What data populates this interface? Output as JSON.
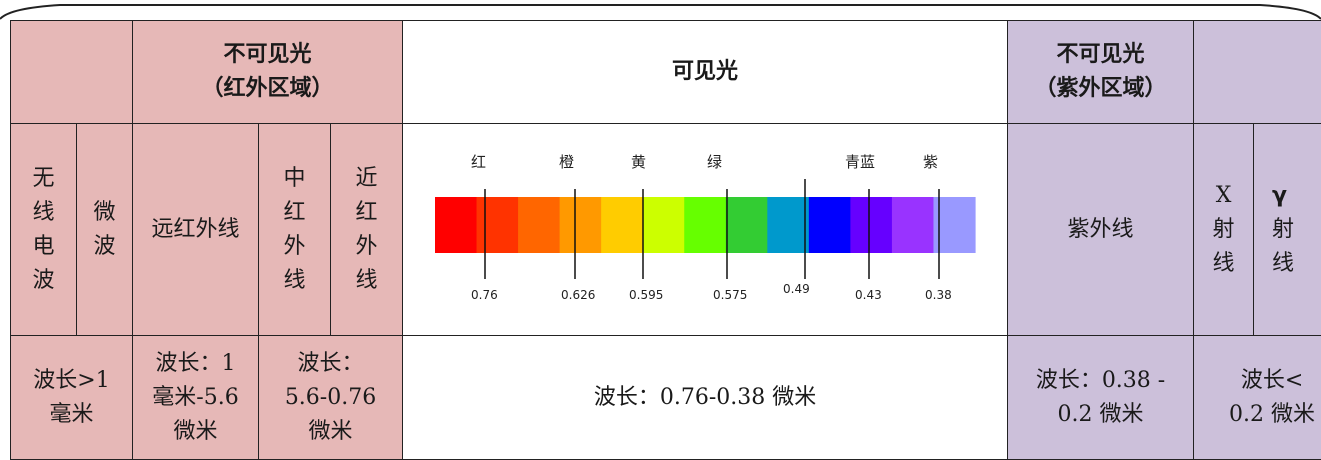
{
  "headers": {
    "infrared_title": "不可见光",
    "infrared_sub": "（红外区域）",
    "visible_title": "可见光",
    "ultraviolet_title": "不可见光",
    "ultraviolet_sub": "（紫外区域）"
  },
  "bands": {
    "radio": "无线电波",
    "microwave": "微波",
    "far_infrared": "远红外线",
    "mid_infrared": "中红外线",
    "near_infrared": "近红外线",
    "ultraviolet": "紫外线",
    "xray_prefix": "X",
    "xray_suffix": "射线",
    "gamma_prefix": "γ",
    "gamma_suffix": "射线"
  },
  "spectrum": {
    "color_labels": [
      "红",
      "橙",
      "黄",
      "绿",
      "青蓝",
      "紫"
    ],
    "wavelengths": [
      "0.76",
      "0.626",
      "0.595",
      "0.575",
      "0.49",
      "0.43",
      "0.38"
    ],
    "colors": [
      "#ff0000",
      "#ff3300",
      "#ff6600",
      "#ff9900",
      "#ffcc00",
      "#ccff00",
      "#66ff00",
      "#33cc33",
      "#0099cc",
      "#0000ff",
      "#6600ff",
      "#9933ff",
      "#9999ff"
    ]
  },
  "wavelength_row": {
    "radio_line1": "波长>1",
    "radio_line2": "毫米",
    "far_ir_line1": "波长：1",
    "far_ir_line2": "毫米-5.6",
    "far_ir_line3": "微米",
    "mid_near_line1": "波长：",
    "mid_near_line2": "5.6-0.76",
    "mid_near_line3": "微米",
    "visible": "波长：0.76-0.38 微米",
    "uv_line1": "波长：0.38 -",
    "uv_line2": "0.2 微米",
    "xg_line1": "波长<",
    "xg_line2": "0.2 微米"
  }
}
